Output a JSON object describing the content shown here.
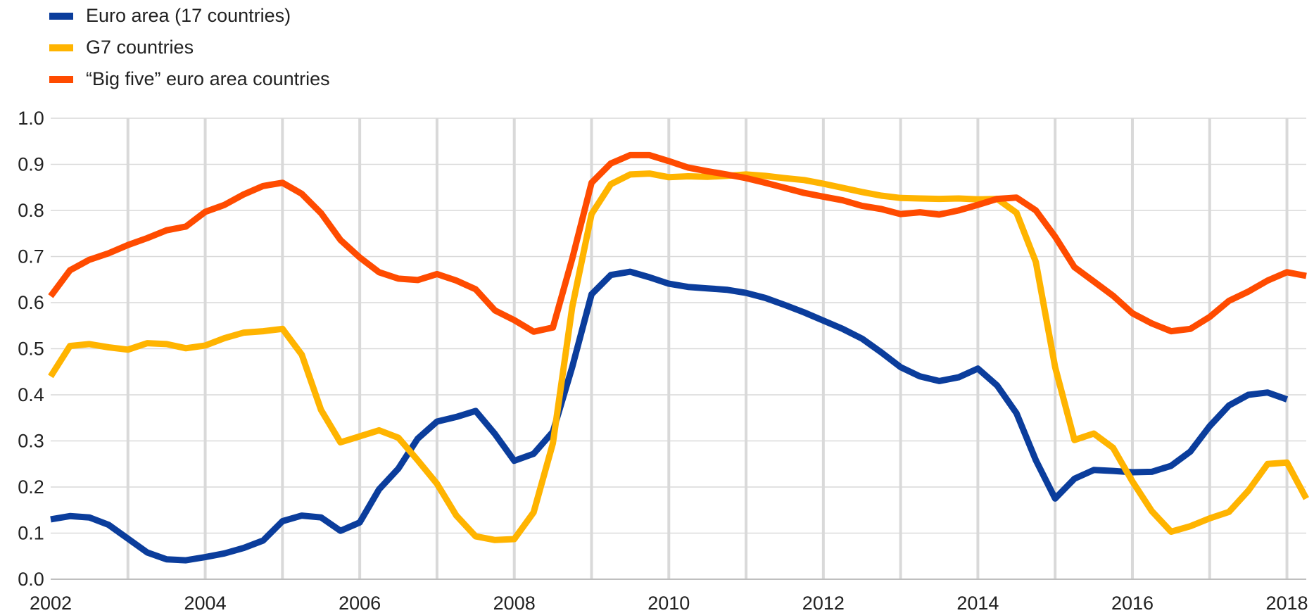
{
  "chart_data": {
    "type": "line",
    "title": "",
    "xlabel": "",
    "ylabel": "",
    "xlim": [
      2002,
      2018.25
    ],
    "ylim": [
      0,
      1
    ],
    "grid": "vertical and horizontal",
    "legend_position": "top-left",
    "y_ticks": [
      "0.0",
      "0.1",
      "0.2",
      "0.3",
      "0.4",
      "0.5",
      "0.6",
      "0.7",
      "0.8",
      "0.9",
      "1.0"
    ],
    "x_ticks": [
      "2002",
      "2004",
      "2006",
      "2008",
      "2010",
      "2012",
      "2014",
      "2016",
      "2018"
    ],
    "x": [
      2002.0,
      2002.25,
      2002.5,
      2002.75,
      2003.0,
      2003.25,
      2003.5,
      2003.75,
      2004.0,
      2004.25,
      2004.5,
      2004.75,
      2005.0,
      2005.25,
      2005.5,
      2005.75,
      2006.0,
      2006.25,
      2006.5,
      2006.75,
      2007.0,
      2007.25,
      2007.5,
      2007.75,
      2008.0,
      2008.25,
      2008.5,
      2008.75,
      2009.0,
      2009.25,
      2009.5,
      2009.75,
      2010.0,
      2010.25,
      2010.5,
      2010.75,
      2011.0,
      2011.25,
      2011.5,
      2011.75,
      2012.0,
      2012.25,
      2012.5,
      2012.75,
      2013.0,
      2013.25,
      2013.5,
      2013.75,
      2014.0,
      2014.25,
      2014.5,
      2014.75,
      2015.0,
      2015.25,
      2015.5,
      2015.75,
      2016.0,
      2016.25,
      2016.5,
      2016.75,
      2017.0,
      2017.25,
      2017.5,
      2017.75,
      2018.0,
      2018.25
    ],
    "series": [
      {
        "name": "Euro area (17 countries)",
        "color": "#0b3d9c",
        "values": [
          0.13,
          0.137,
          0.134,
          0.118,
          0.088,
          0.058,
          0.043,
          0.041,
          0.048,
          0.056,
          0.068,
          0.084,
          0.126,
          0.138,
          0.134,
          0.105,
          0.123,
          0.195,
          0.24,
          0.305,
          0.342,
          0.352,
          0.365,
          0.315,
          0.257,
          0.272,
          0.32,
          0.46,
          0.618,
          0.66,
          0.667,
          0.655,
          0.641,
          0.634,
          0.631,
          0.628,
          0.621,
          0.61,
          0.595,
          0.579,
          0.561,
          0.543,
          0.522,
          0.492,
          0.46,
          0.44,
          0.43,
          0.438,
          0.457,
          0.42,
          0.36,
          0.258,
          0.175,
          0.218,
          0.237,
          0.235,
          0.232,
          0.233,
          0.246,
          0.277,
          0.332,
          0.377,
          0.4,
          0.405,
          0.39,
          null
        ]
      },
      {
        "name": "G7 countries",
        "color": "#ffb400",
        "values": [
          0.44,
          0.506,
          0.51,
          0.503,
          0.498,
          0.512,
          0.51,
          0.501,
          0.507,
          0.523,
          0.535,
          0.538,
          0.543,
          0.487,
          0.367,
          0.297,
          0.31,
          0.323,
          0.307,
          0.258,
          0.207,
          0.138,
          0.093,
          0.085,
          0.087,
          0.145,
          0.295,
          0.59,
          0.792,
          0.857,
          0.878,
          0.88,
          0.872,
          0.874,
          0.873,
          0.875,
          0.878,
          0.875,
          0.87,
          0.866,
          0.858,
          0.849,
          0.84,
          0.832,
          0.827,
          0.826,
          0.825,
          0.826,
          0.824,
          0.825,
          0.795,
          0.688,
          0.46,
          0.302,
          0.316,
          0.285,
          0.212,
          0.148,
          0.103,
          0.115,
          0.132,
          0.146,
          0.192,
          0.25,
          0.253,
          0.175
        ]
      },
      {
        "name": "“Big five” euro area countries",
        "color": "#ff4b00",
        "values": [
          0.614,
          0.67,
          0.693,
          0.707,
          0.725,
          0.74,
          0.757,
          0.765,
          0.797,
          0.812,
          0.835,
          0.853,
          0.86,
          0.836,
          0.794,
          0.736,
          0.698,
          0.666,
          0.652,
          0.649,
          0.662,
          0.648,
          0.629,
          0.583,
          0.562,
          0.537,
          0.546,
          0.695,
          0.86,
          0.902,
          0.92,
          0.92,
          0.907,
          0.893,
          0.885,
          0.878,
          0.87,
          0.86,
          0.849,
          0.838,
          0.83,
          0.822,
          0.81,
          0.803,
          0.792,
          0.796,
          0.791,
          0.8,
          0.812,
          0.825,
          0.828,
          0.8,
          0.743,
          0.677,
          0.646,
          0.615,
          0.577,
          0.555,
          0.538,
          0.543,
          0.569,
          0.604,
          0.624,
          0.648,
          0.666,
          0.658
        ]
      }
    ]
  }
}
